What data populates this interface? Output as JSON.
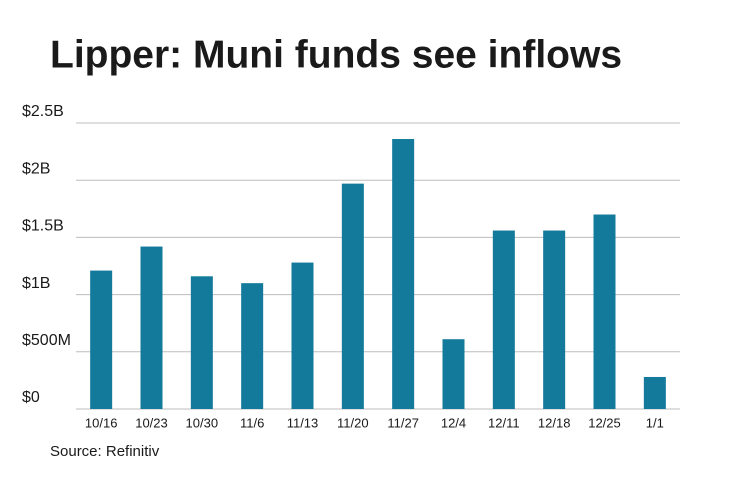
{
  "chart_data": {
    "type": "bar",
    "title": "Lipper: Muni funds see inflows",
    "source": "Source: Refinitiv",
    "categories": [
      "10/16",
      "10/23",
      "10/30",
      "11/6",
      "11/13",
      "11/20",
      "11/27",
      "12/4",
      "12/11",
      "12/18",
      "12/25",
      "1/1"
    ],
    "values": [
      1210000000,
      1420000000,
      1160000000,
      1100000000,
      1280000000,
      1970000000,
      2360000000,
      610000000,
      1560000000,
      1560000000,
      1700000000,
      280000000
    ],
    "color": "#137a9b",
    "ylim": [
      0,
      2500000000
    ],
    "yticks": [
      {
        "value": 0,
        "label": "$0"
      },
      {
        "value": 500000000,
        "label": "$500M"
      },
      {
        "value": 1000000000,
        "label": "$1B"
      },
      {
        "value": 1500000000,
        "label": "$1.5B"
      },
      {
        "value": 2000000000,
        "label": "$2B"
      },
      {
        "value": 2500000000,
        "label": "$2.5B"
      }
    ],
    "grid": true
  }
}
